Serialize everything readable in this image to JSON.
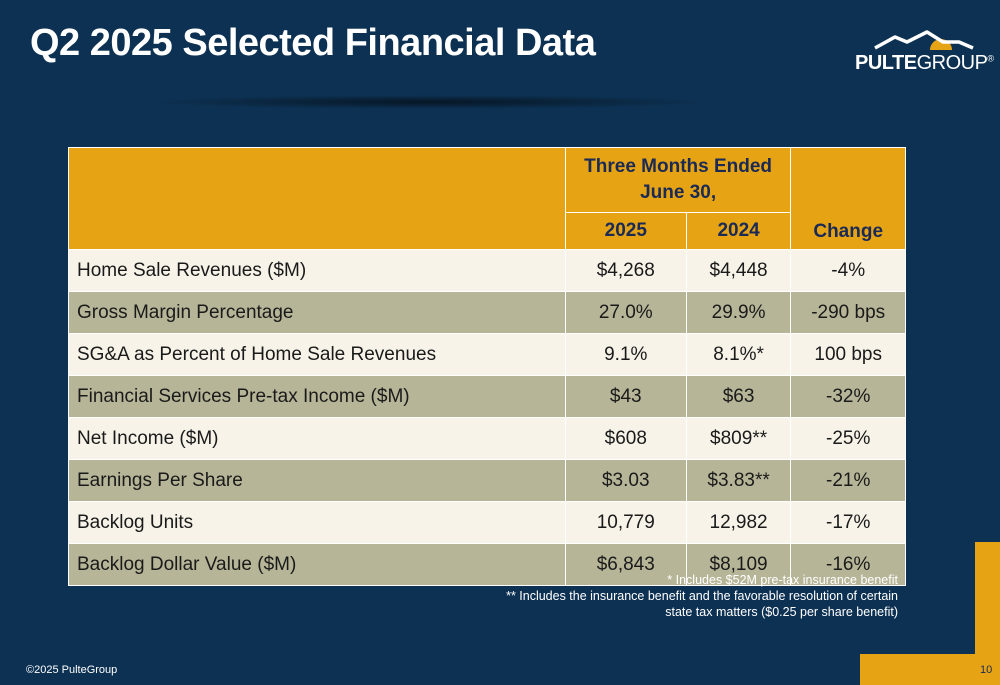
{
  "title": "Q2 2025 Selected Financial Data",
  "logo": {
    "text_a": "PULTE",
    "text_b": "GROUP",
    "reg": "®",
    "icon": "house-roof-sun-icon"
  },
  "colors": {
    "background": "#0d3152",
    "gold": "#e6a415",
    "row_light": "#f7f3e8",
    "row_dark": "#b7b597",
    "header_text": "#1a2a55"
  },
  "table": {
    "group_header_line1": "Three Months Ended",
    "group_header_line2": "June 30,",
    "col_2025": "2025",
    "col_2024": "2024",
    "col_change": "Change",
    "rows": [
      {
        "label": "Home Sale Revenues ($M)",
        "y2025": "$4,268",
        "y2024": "$4,448",
        "change": "-4%"
      },
      {
        "label": "Gross Margin Percentage",
        "y2025": "27.0%",
        "y2024": "29.9%",
        "change": "-290 bps"
      },
      {
        "label": "SG&A as Percent of Home Sale Revenues",
        "y2025": "9.1%",
        "y2024": "8.1%*",
        "change": "100 bps"
      },
      {
        "label": "Financial Services Pre-tax Income ($M)",
        "y2025": "$43",
        "y2024": "$63",
        "change": "-32%"
      },
      {
        "label": "Net Income ($M)",
        "y2025": "$608",
        "y2024": "$809**",
        "change": "-25%"
      },
      {
        "label": "Earnings Per Share",
        "y2025": "$3.03",
        "y2024": "$3.83**",
        "change": "-21%"
      },
      {
        "label": "Backlog Units",
        "y2025": "10,779",
        "y2024": "12,982",
        "change": "-17%"
      },
      {
        "label": "Backlog Dollar Value ($M)",
        "y2025": "$6,843",
        "y2024": "$8,109",
        "change": "-16%"
      }
    ]
  },
  "footnotes": {
    "line1": "* Includes $52M pre-tax insurance benefit",
    "line2": "** Includes the insurance benefit and the favorable resolution of certain",
    "line3": "state tax matters ($0.25 per share benefit)"
  },
  "copyright": "©2025 PulteGroup",
  "page_number": "10"
}
